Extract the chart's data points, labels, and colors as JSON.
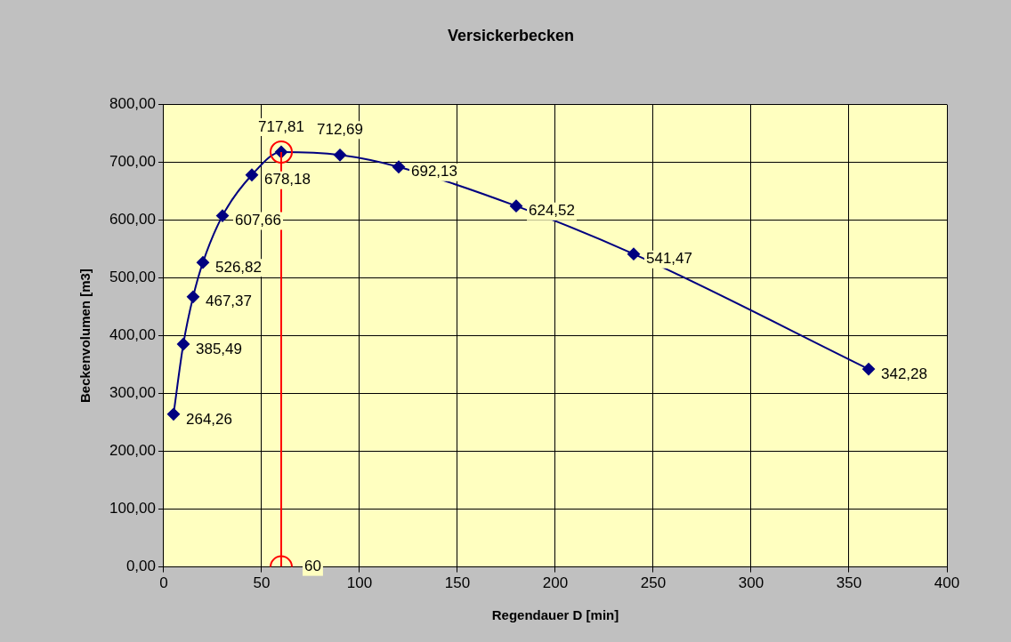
{
  "chart_data": {
    "type": "line",
    "title": "Versickerbecken",
    "xlabel": "Regendauer D [min]",
    "ylabel": "Beckenvolumen [m3]",
    "x": [
      5,
      10,
      15,
      20,
      30,
      45,
      60,
      90,
      120,
      180,
      240,
      360
    ],
    "series": [
      {
        "color": "#000080",
        "marker": "diamond",
        "values": [
          264.26,
          385.49,
          467.37,
          526.82,
          607.66,
          678.18,
          717.81,
          712.69,
          692.13,
          624.52,
          541.47,
          342.28
        ],
        "value_labels": [
          "264,26",
          "385,49",
          "467,37",
          "526,82",
          "607,66",
          "678,18",
          "717,81",
          "712,69",
          "692,13",
          "624,52",
          "541,47",
          "342,28"
        ]
      },
      {
        "type": "line",
        "color": "#ff0000",
        "marker": "circle",
        "x": [
          60,
          60
        ],
        "values": [
          0,
          717.81
        ]
      }
    ],
    "annotations": [
      {
        "text": "60",
        "x": 60,
        "y": 0
      }
    ],
    "xlim": [
      0,
      400
    ],
    "xticks": [
      0,
      50,
      100,
      150,
      200,
      250,
      300,
      350,
      400
    ],
    "ylim": [
      0,
      800
    ],
    "yticks": [
      {
        "value": 0,
        "label": "0,00"
      },
      {
        "value": 100,
        "label": "100,00"
      },
      {
        "value": 200,
        "label": "200,00"
      },
      {
        "value": 300,
        "label": "300,00"
      },
      {
        "value": 400,
        "label": "400,00"
      },
      {
        "value": 500,
        "label": "500,00"
      },
      {
        "value": 600,
        "label": "600,00"
      },
      {
        "value": 700,
        "label": "700,00"
      },
      {
        "value": 800,
        "label": "800,00"
      }
    ],
    "grid": true,
    "legend": false,
    "line_style": "solid"
  }
}
